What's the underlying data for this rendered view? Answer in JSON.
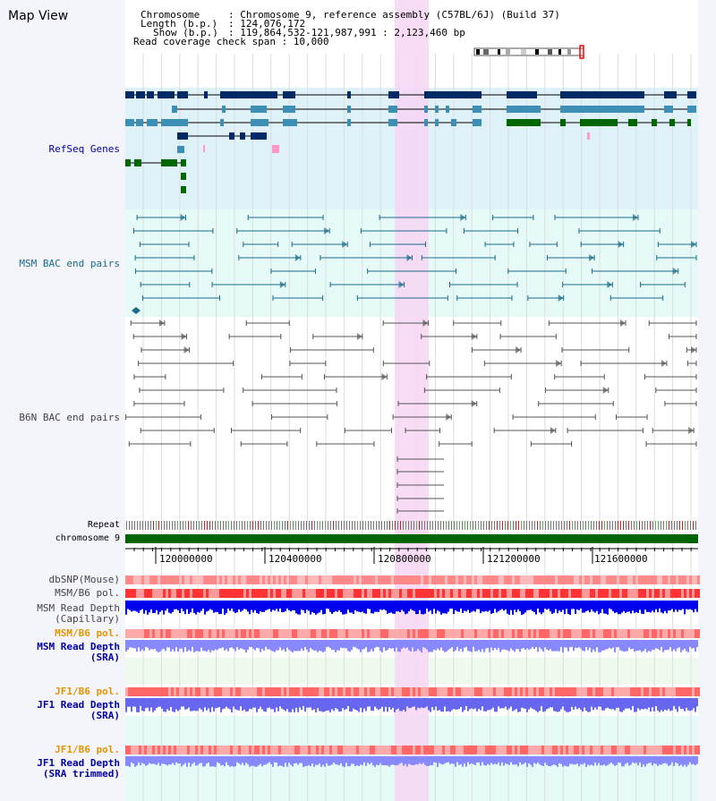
{
  "title": "Map View",
  "info": {
    "chromosome_key": "Chromosome",
    "chromosome_val": ": Chromosome 9, reference assembly (C57BL/6J) (Build 37)",
    "length_key": "Length (b.p.)",
    "length_val": ": 124,076,172",
    "show_key": "Show (b.p.)",
    "show_val": ": 119,864,532-121,987,991 : 2,123,460 bp",
    "coverage": "Read coverage check span : 10,000"
  },
  "tracks": {
    "refseq": "RefSeq Genes",
    "msm_bac": "MSM BAC end pairs",
    "b6n_bac": "B6N BAC end pairs",
    "repeat": "Repeat",
    "chromosome": "chromosome 9",
    "dbsnp": "dbSNP(Mouse)",
    "msm_b6_pol": "MSM/B6 pol.",
    "msm_depth_cap_1": "MSM Read Depth",
    "msm_depth_cap_2": "(Capillary)",
    "msm_b6_pol2": "MSM/B6 pol.",
    "msm_depth_sra_1": "MSM Read Depth",
    "msm_depth_sra_2": "(SRA)",
    "jf1_pol": "JF1/B6 pol.",
    "jf1_depth_sra_1": "JF1 Read Depth",
    "jf1_depth_sra_2": "(SRA)",
    "jf1_pol2": "JF1/B6 pol.",
    "jf1_depth_trim_1": "JF1 Read Depth",
    "jf1_depth_trim_2": "(SRA trimmed)"
  },
  "axis": {
    "ticks": [
      "120000000",
      "120400000",
      "120800000",
      "121200000",
      "121600000"
    ]
  },
  "colors": {
    "refseq_bg": "#dff2fa",
    "msm_bg": "#e6faf8",
    "highlight": "#f7d6f4",
    "gene_dark": "#002a66",
    "gene_mid": "#3d8fb5",
    "gene_green": "#006600",
    "msm_line": "#1a6b8a",
    "b6n_line": "#555555",
    "chrom_bar": "#006400",
    "snp_red": "#ff4444",
    "depth_blue": "#0000ee",
    "depth_light": "#8888ff",
    "label_blue": "#0000aa",
    "label_orange": "#e69500"
  }
}
